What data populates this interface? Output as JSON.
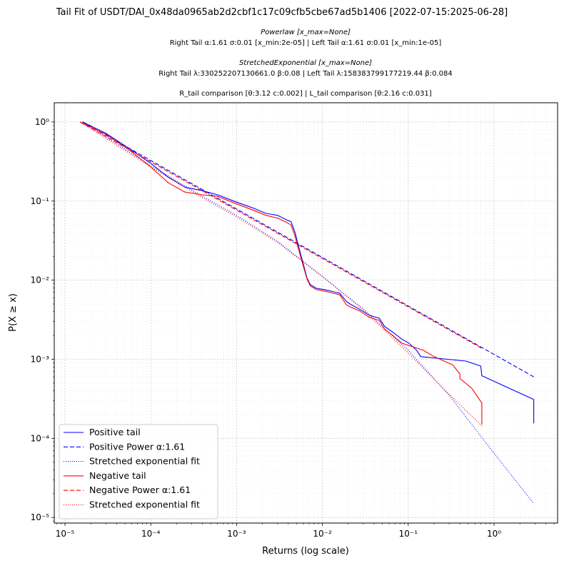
{
  "chart_data": {
    "type": "line",
    "title": "Tail Fit of USDT/DAI_0x48da0965ab2d2cbf1c17c09cfb5cbe67ad5b1406 [2022-07-15:2025-06-28]",
    "subtitle_lines": [
      "Powerlaw [x_max=None]",
      "Right Tail α:1.61 σ:0.01 [x_min:2e-05] | Left Tail α:1.61 σ:0.01 [x_min:1e-05]",
      "StretchedExponential [x_max=None]",
      "Right Tail λ:330252207130661.0 β:0.08 | Left Tail λ:158383799177219.44 β:0.084",
      "R_tail comparison [θ:3.12 c:0.002] | L_tail comparison [θ:2.16 c:0.031]"
    ],
    "xlabel": "Returns (log scale)",
    "ylabel": "P(X ≥ x)",
    "xscale": "log",
    "yscale": "log",
    "xlim": [
      7.5e-06,
      5.5
    ],
    "ylim": [
      8.5e-06,
      1.75
    ],
    "xticks": [
      {
        "v": 1e-05,
        "label": "10⁻⁵"
      },
      {
        "v": 0.0001,
        "label": "10⁻⁴"
      },
      {
        "v": 0.001,
        "label": "10⁻³"
      },
      {
        "v": 0.01,
        "label": "10⁻²"
      },
      {
        "v": 0.1,
        "label": "10⁻¹"
      },
      {
        "v": 1,
        "label": "10⁰"
      }
    ],
    "yticks": [
      {
        "v": 1e-05,
        "label": "10⁻⁵"
      },
      {
        "v": 0.0001,
        "label": "10⁻⁴"
      },
      {
        "v": 0.001,
        "label": "10⁻³"
      },
      {
        "v": 0.01,
        "label": "10⁻²"
      },
      {
        "v": 0.1,
        "label": "10⁻¹"
      },
      {
        "v": 1,
        "label": "10⁰"
      }
    ],
    "grid": true,
    "legend_position": "lower-left",
    "series": [
      {
        "name": "Positive tail",
        "color": "#0000ff",
        "dash": "solid",
        "x": [
          1.6e-05,
          3e-05,
          6e-05,
          0.0001,
          0.00016,
          0.00025,
          0.0004,
          0.0006,
          0.001,
          0.0015,
          0.0022,
          0.003,
          0.0038,
          0.0043,
          0.0048,
          0.0053,
          0.006,
          0.0066,
          0.0072,
          0.0085,
          0.0105,
          0.013,
          0.016,
          0.019,
          0.021,
          0.027,
          0.035,
          0.046,
          0.053,
          0.066,
          0.084,
          0.102,
          0.125,
          0.14,
          0.47,
          0.7,
          0.72,
          2.9,
          2.9
        ],
        "y": [
          1.0,
          0.72,
          0.44,
          0.3,
          0.2,
          0.15,
          0.135,
          0.12,
          0.097,
          0.083,
          0.07,
          0.066,
          0.058,
          0.055,
          0.04,
          0.026,
          0.016,
          0.0107,
          0.0088,
          0.0079,
          0.0076,
          0.0072,
          0.0068,
          0.0054,
          0.005,
          0.0043,
          0.0036,
          0.0033,
          0.0026,
          0.0022,
          0.0018,
          0.0016,
          0.0013,
          0.00108,
          0.00095,
          0.00082,
          0.00062,
          0.00031,
          0.000155
        ]
      },
      {
        "name": "Positive Power α:1.61",
        "color": "#0000ff",
        "dash": "6,3",
        "x": [
          1.6e-05,
          2.9
        ],
        "y": [
          1.0,
          0.0006
        ]
      },
      {
        "name": "Stretched exponential fit",
        "color": "#0000ff",
        "dash": "1,2",
        "x": [
          1.6e-05,
          0.0001,
          0.0004,
          0.001,
          0.003,
          0.01,
          0.03,
          0.1,
          0.3,
          1.0,
          2.9
        ],
        "y": [
          1.0,
          0.28,
          0.115,
          0.066,
          0.031,
          0.0112,
          0.0043,
          0.0013,
          0.00035,
          6.5e-05,
          1.5e-05
        ]
      },
      {
        "name": "Negative tail",
        "color": "#ff0000",
        "dash": "solid",
        "x": [
          1.5e-05,
          3e-05,
          6e-05,
          0.0001,
          0.00016,
          0.00025,
          0.0004,
          0.0006,
          0.001,
          0.0015,
          0.0022,
          0.003,
          0.0038,
          0.0043,
          0.0048,
          0.0053,
          0.006,
          0.0066,
          0.0072,
          0.0085,
          0.0105,
          0.013,
          0.016,
          0.019,
          0.021,
          0.027,
          0.035,
          0.046,
          0.053,
          0.066,
          0.084,
          0.15,
          0.2,
          0.33,
          0.4,
          0.4,
          0.55,
          0.72,
          0.72
        ],
        "y": [
          1.0,
          0.7,
          0.42,
          0.27,
          0.17,
          0.13,
          0.12,
          0.115,
          0.092,
          0.078,
          0.066,
          0.061,
          0.054,
          0.05,
          0.036,
          0.024,
          0.015,
          0.0104,
          0.0085,
          0.0076,
          0.0073,
          0.0069,
          0.0065,
          0.0049,
          0.0046,
          0.0041,
          0.0034,
          0.0031,
          0.0024,
          0.002,
          0.0016,
          0.0013,
          0.00108,
          0.00085,
          0.00065,
          0.00057,
          0.00043,
          0.00028,
          0.00015
        ]
      },
      {
        "name": "Negative Power α:1.61",
        "color": "#ff0000",
        "dash": "6,3",
        "x": [
          1.5e-05,
          0.74
        ],
        "y": [
          1.0,
          0.00135
        ]
      },
      {
        "name": "Stretched exponential fit",
        "color": "#ff0000",
        "dash": "1,2",
        "x": [
          1.5e-05,
          0.0001,
          0.0004,
          0.001,
          0.003,
          0.01,
          0.03,
          0.1,
          0.3,
          0.74
        ],
        "y": [
          1.0,
          0.27,
          0.11,
          0.063,
          0.03,
          0.011,
          0.0042,
          0.0012,
          0.00036,
          0.00014
        ]
      }
    ]
  }
}
